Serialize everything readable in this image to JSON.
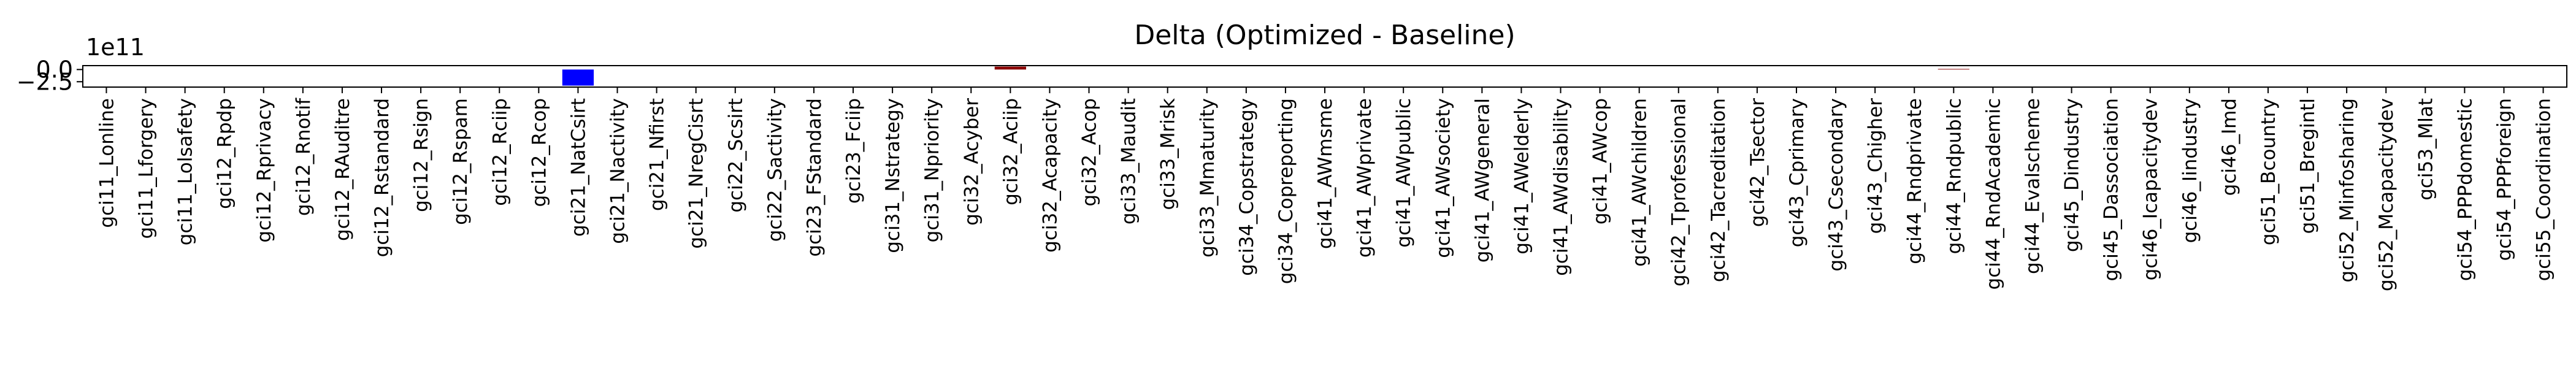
{
  "chart_data": {
    "type": "bar",
    "title": "Delta (Optimized - Baseline)",
    "xlabel": "",
    "ylabel": "",
    "offset_text": "1e11",
    "yticks": [
      {
        "value": -2.5,
        "label": "−2.5"
      },
      {
        "value": 0.0,
        "label": "0.0"
      }
    ],
    "ylim": [
      -3.6,
      0.8
    ],
    "grid": false,
    "colors": {
      "positive": "#8b0000",
      "negative": "#0000ff",
      "zero": "#8b0000"
    },
    "categories": [
      "gci11_Lonline",
      "gci11_Lforgery",
      "gci11_Lolsafety",
      "gci12_Rpdp",
      "gci12_Rprivacy",
      "gci12_Rnotif",
      "gci12_RAuditre",
      "gci12_Rstandard",
      "gci12_Rsign",
      "gci12_Rspam",
      "gci12_Rciip",
      "gci12_Rcop",
      "gci21_NatCsirt",
      "gci21_Nactivity",
      "gci21_Nfirst",
      "gci21_NregCisrt",
      "gci22_Scsirt",
      "gci22_Sactivity",
      "gci23_FStandard",
      "gci23_Fciip",
      "gci31_Nstrategy",
      "gci31_Npriority",
      "gci32_Acyber",
      "gci32_Aciip",
      "gci32_Acapacity",
      "gci32_Acop",
      "gci33_Maudit",
      "gci33_Mrisk",
      "gci33_Mmaturity",
      "gci34_Copstrategy",
      "gci34_Copreporting",
      "gci41_AWmsme",
      "gci41_AWprivate",
      "gci41_AWpublic",
      "gci41_AWsociety",
      "gci41_AWgeneral",
      "gci41_AWelderly",
      "gci41_AWdisability",
      "gci41_AWcop",
      "gci41_AWchildren",
      "gci42_Tprofessional",
      "gci42_Tacreditation",
      "gci42_Tsector",
      "gci43_Cprimary",
      "gci43_Csecondary",
      "gci43_Chigher",
      "gci44_Rndprivate",
      "gci44_Rndpublic",
      "gci44_RndAcademic",
      "gci44_Evalscheme",
      "gci45_Dindustry",
      "gci45_Dassociation",
      "gci46_Icapacitydev",
      "gci46_Iindustry",
      "gci46_Imd",
      "gci51_Bcountry",
      "gci51_Bregintl",
      "gci52_Minfosharing",
      "gci52_Mcapacitydev",
      "gci53_Mlat",
      "gci54_PPPdomestic",
      "gci54_PPPforeign",
      "gci55_Coordination"
    ],
    "values": [
      0,
      0,
      0,
      0,
      0,
      0,
      0,
      0,
      0,
      0,
      0,
      0,
      -3.3,
      0,
      0,
      0,
      0,
      0,
      0,
      0,
      0,
      0,
      0,
      0.6,
      0,
      0,
      0,
      0,
      0,
      0,
      0,
      0,
      0,
      0,
      0,
      0,
      0,
      0,
      0,
      0,
      0,
      0,
      0,
      0,
      0,
      0,
      0,
      0.12,
      0,
      0,
      0,
      0,
      0,
      0,
      0,
      0,
      0,
      0,
      0,
      0,
      0,
      0,
      0
    ]
  }
}
